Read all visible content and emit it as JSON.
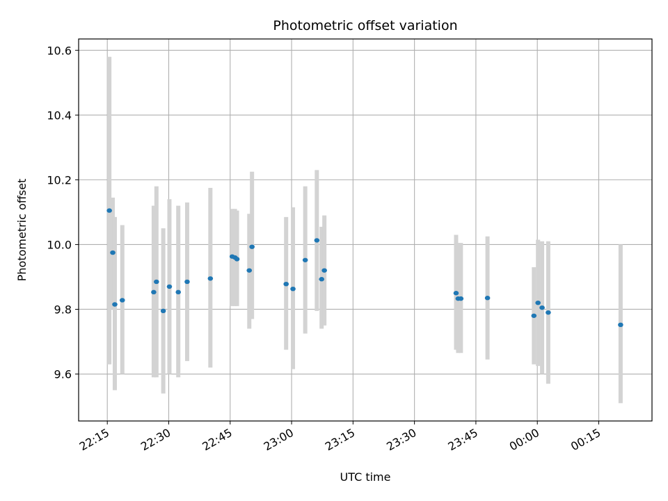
{
  "chart_data": {
    "type": "scatter",
    "title": "Photometric offset variation",
    "xlabel": "UTC time",
    "ylabel": "Photometric offset",
    "xlim": [
      "22:08",
      "00:28"
    ],
    "ylim": [
      9.455,
      10.635
    ],
    "grid": true,
    "x_ticks": [
      "22:15",
      "22:30",
      "22:45",
      "23:00",
      "23:15",
      "23:30",
      "23:45",
      "00:00",
      "00:15"
    ],
    "y_ticks": [
      "9.6",
      "9.8",
      "10.0",
      "10.2",
      "10.4",
      "10.6"
    ],
    "colors": {
      "point": "#1f77b4",
      "errorbar": "#d3d3d3",
      "grid": "#b0b0b0"
    },
    "points": [
      {
        "x": "22:15:30",
        "y": 10.105,
        "low": 9.63,
        "high": 10.58
      },
      {
        "x": "22:16:20",
        "y": 9.975,
        "low": 9.8,
        "high": 10.145
      },
      {
        "x": "22:16:50",
        "y": 9.815,
        "low": 9.55,
        "high": 10.085
      },
      {
        "x": "22:18:40",
        "y": 9.828,
        "low": 9.6,
        "high": 10.06
      },
      {
        "x": "22:26:20",
        "y": 9.853,
        "low": 9.59,
        "high": 10.12
      },
      {
        "x": "22:27:00",
        "y": 9.885,
        "low": 9.59,
        "high": 10.18
      },
      {
        "x": "22:28:40",
        "y": 9.795,
        "low": 9.54,
        "high": 10.05
      },
      {
        "x": "22:30:10",
        "y": 9.87,
        "low": 9.6,
        "high": 10.14
      },
      {
        "x": "22:32:20",
        "y": 9.853,
        "low": 9.59,
        "high": 10.12
      },
      {
        "x": "22:34:30",
        "y": 9.885,
        "low": 9.64,
        "high": 10.13
      },
      {
        "x": "22:40:10",
        "y": 9.895,
        "low": 9.62,
        "high": 10.175
      },
      {
        "x": "22:45:30",
        "y": 9.963,
        "low": 9.81,
        "high": 10.11
      },
      {
        "x": "22:46:10",
        "y": 9.96,
        "low": 9.81,
        "high": 10.11
      },
      {
        "x": "22:46:40",
        "y": 9.955,
        "low": 9.81,
        "high": 10.105
      },
      {
        "x": "22:49:40",
        "y": 9.92,
        "low": 9.74,
        "high": 10.095
      },
      {
        "x": "22:50:20",
        "y": 9.993,
        "low": 9.77,
        "high": 10.225
      },
      {
        "x": "22:58:40",
        "y": 9.878,
        "low": 9.675,
        "high": 10.085
      },
      {
        "x": "23:00:20",
        "y": 9.863,
        "low": 9.615,
        "high": 10.115
      },
      {
        "x": "23:03:20",
        "y": 9.952,
        "low": 9.725,
        "high": 10.18
      },
      {
        "x": "23:06:10",
        "y": 10.013,
        "low": 9.795,
        "high": 10.23
      },
      {
        "x": "23:07:20",
        "y": 9.893,
        "low": 9.74,
        "high": 10.055
      },
      {
        "x": "23:08:00",
        "y": 9.92,
        "low": 9.75,
        "high": 10.09
      },
      {
        "x": "23:40:10",
        "y": 9.85,
        "low": 9.675,
        "high": 10.03
      },
      {
        "x": "23:40:40",
        "y": 9.833,
        "low": 9.665,
        "high": 10.005
      },
      {
        "x": "23:41:20",
        "y": 9.833,
        "low": 9.665,
        "high": 10.005
      },
      {
        "x": "23:47:50",
        "y": 9.835,
        "low": 9.645,
        "high": 10.025
      },
      {
        "x": "23:59:10",
        "y": 9.78,
        "low": 9.63,
        "high": 9.93
      },
      {
        "x": "00:00:10",
        "y": 9.82,
        "low": 9.625,
        "high": 10.015
      },
      {
        "x": "00:01:10",
        "y": 9.805,
        "low": 9.6,
        "high": 10.01
      },
      {
        "x": "00:02:40",
        "y": 9.79,
        "low": 9.57,
        "high": 10.01
      },
      {
        "x": "00:20:20",
        "y": 9.752,
        "low": 9.51,
        "high": 10.0
      }
    ]
  }
}
